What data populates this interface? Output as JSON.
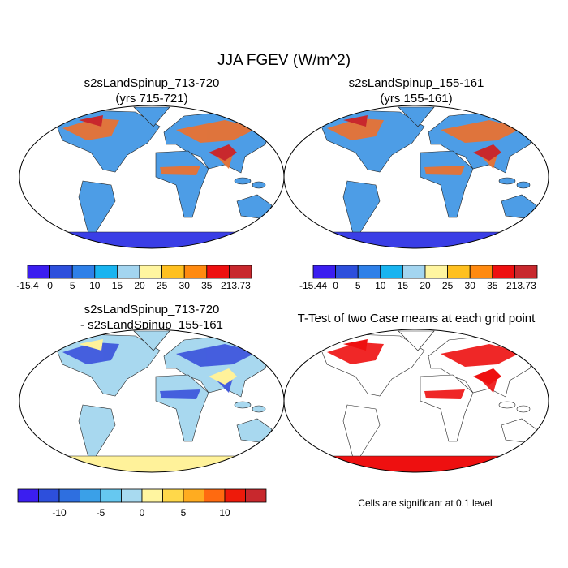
{
  "title": "JJA FGEV (W/m^2)",
  "panels": [
    {
      "title": [
        "s2sLandSpinup_713-720",
        "(yrs 715-721)"
      ],
      "land": "#4d9de6",
      "warm": "#f0702a",
      "hot": "#c8282d",
      "ice": "#3a3ee6"
    },
    {
      "title": [
        "s2sLandSpinup_155-161",
        "(yrs 155-161)"
      ],
      "land": "#4d9de6",
      "warm": "#f0702a",
      "hot": "#c8282d",
      "ice": "#3a3ee6"
    },
    {
      "title": [
        "s2sLandSpinup_713-720",
        "- s2sLandSpinup_155-161"
      ],
      "land": "#a8d8ef",
      "warm": "#3a52dc",
      "hot": "#fff29a",
      "ice": "#fff29a"
    },
    {
      "title": [
        "T-Test of two Case means at each grid point"
      ],
      "land": "#ffffff",
      "warm": "#ee1010",
      "hot": "#ee1010",
      "ice": "#ee1010"
    }
  ],
  "colorbars": [
    {
      "colors": [
        "#3b1ef0",
        "#2d4fdc",
        "#2e80e8",
        "#19b4f0",
        "#a3d5f0",
        "#fff5a0",
        "#ffc020",
        "#ff8a10",
        "#ee1010",
        "#c8282d"
      ],
      "labels": [
        "-15.4",
        "0",
        "5",
        "10",
        "15",
        "20",
        "25",
        "30",
        "35",
        "213.73"
      ]
    },
    {
      "colors": [
        "#3b1ef0",
        "#2d4fdc",
        "#2e80e8",
        "#19b4f0",
        "#a3d5f0",
        "#fff5a0",
        "#ffc020",
        "#ff8a10",
        "#ee1010",
        "#c8282d"
      ],
      "labels": [
        "-15.44",
        "0",
        "5",
        "10",
        "15",
        "20",
        "25",
        "30",
        "35",
        "213.73"
      ]
    },
    {
      "colors": [
        "#3b1ef0",
        "#2d4fdc",
        "#2e6fe0",
        "#3aa0e8",
        "#66c8f0",
        "#a8daf0",
        "#fff5a0",
        "#ffd84a",
        "#ffac20",
        "#ff6a10",
        "#ee1a0a",
        "#c8282d"
      ],
      "labels": [
        "-10",
        "-5",
        "0",
        "5",
        "10"
      ]
    }
  ],
  "note": "Cells are significant at 0.1 level"
}
